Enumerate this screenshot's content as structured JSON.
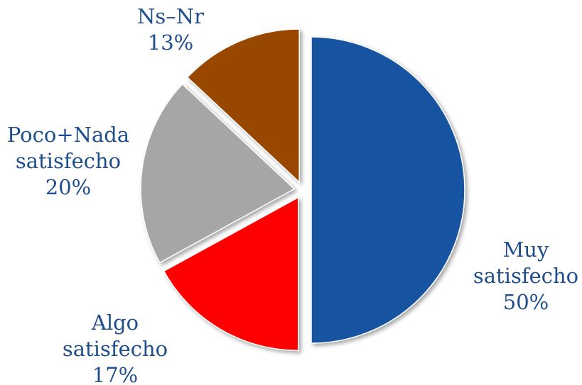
{
  "chart_data": {
    "type": "pie",
    "title": "",
    "exploded": true,
    "slices": [
      {
        "label_lines": [
          "Muy",
          "satisfecho"
        ],
        "percent_label": "50%",
        "value": 50,
        "color": "#1552a1"
      },
      {
        "label_lines": [
          "Algo",
          "satisfecho"
        ],
        "percent_label": "17%",
        "value": 17,
        "color": "#ff0000"
      },
      {
        "label_lines": [
          "Poco+Nada",
          "satisfecho"
        ],
        "percent_label": "20%",
        "value": 20,
        "color": "#a6a6a6"
      },
      {
        "label_lines": [
          "Ns–Nr"
        ],
        "percent_label": "13%",
        "value": 13,
        "color": "#974706"
      }
    ],
    "label_color": "#1f4e8c"
  }
}
